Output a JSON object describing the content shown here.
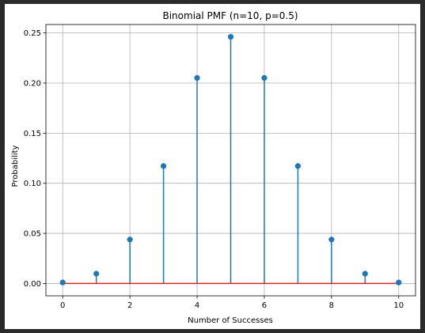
{
  "chart_data": {
    "type": "stem",
    "title": "Binomial PMF (n=10, p=0.5)",
    "xlabel": "Number of Successes",
    "ylabel": "Probability",
    "x": [
      0,
      1,
      2,
      3,
      4,
      5,
      6,
      7,
      8,
      9,
      10
    ],
    "values": [
      0.001,
      0.0098,
      0.0439,
      0.1172,
      0.2051,
      0.2461,
      0.2051,
      0.1172,
      0.0439,
      0.0098,
      0.001
    ],
    "xlim": [
      -0.5,
      10.5
    ],
    "ylim": [
      -0.0123,
      0.2584
    ],
    "xticks": [
      0,
      2,
      4,
      6,
      8,
      10
    ],
    "xtick_labels": [
      "0",
      "2",
      "4",
      "6",
      "8",
      "10"
    ],
    "yticks": [
      0.0,
      0.05,
      0.1,
      0.15,
      0.2,
      0.25
    ],
    "ytick_labels": [
      "0.00",
      "0.05",
      "0.10",
      "0.15",
      "0.20",
      "0.25"
    ],
    "grid": true,
    "colors": {
      "stem": "#1f77b4",
      "marker": "#1f77b4",
      "baseline": "#d62728",
      "grid": "#b0b0b0"
    }
  }
}
